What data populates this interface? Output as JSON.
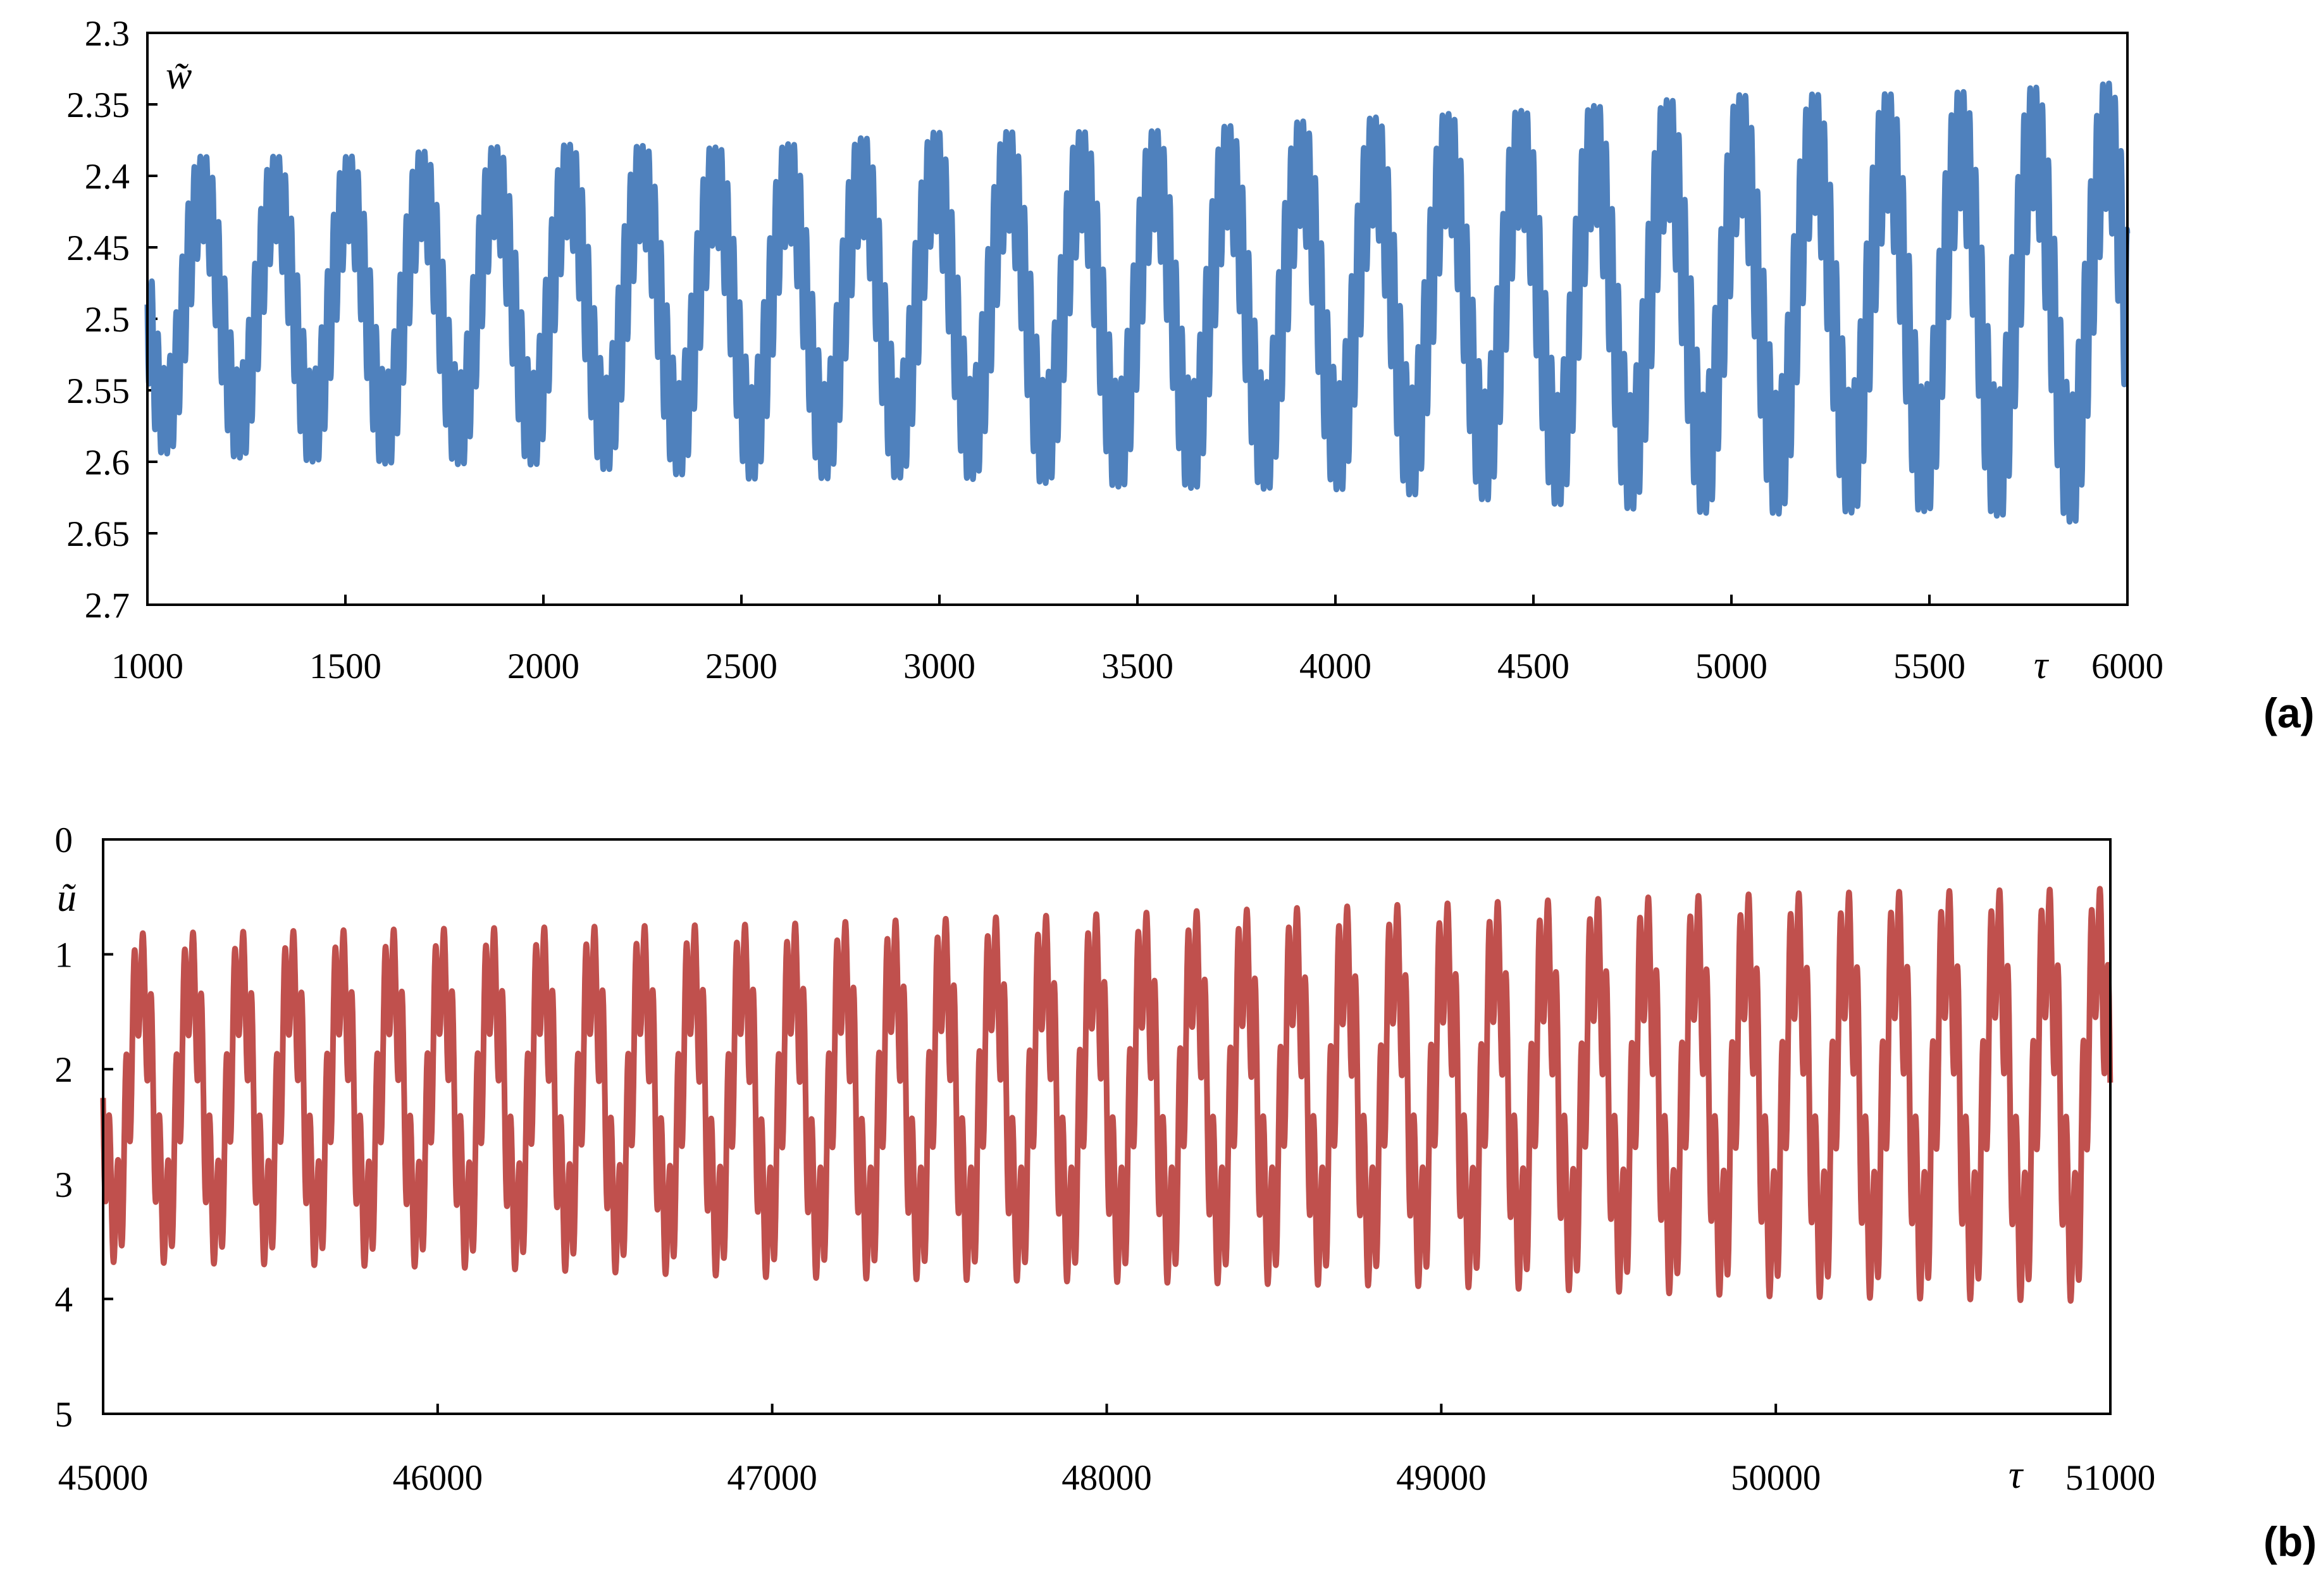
{
  "chart_data": [
    {
      "type": "line",
      "panel_label": "(a)",
      "ylabel": "w̃",
      "xlabel": "τ",
      "xlim": [
        1000,
        6000
      ],
      "ylim": [
        2.3,
        2.7
      ],
      "y_inverted": true,
      "x_ticks": [
        "1000",
        "1500",
        "2000",
        "2500",
        "3000",
        "3500",
        "4000",
        "4500",
        "5000",
        "5500",
        "6000"
      ],
      "y_ticks": [
        "2.3",
        "2.35",
        "2.4",
        "2.45",
        "2.5",
        "2.55",
        "2.6",
        "2.65",
        "2.7"
      ],
      "grid": false,
      "color": "#4f81bd",
      "series": [
        {
          "description_values": "oscillation about 2.49, envelope beat period ~185 τ, fast period ~15 τ; envelope grows from min~2.37/max~2.61 at τ=1000 to min~2.31/max~2.67 at τ=6000",
          "x": [
            1000,
            1500,
            2000,
            2500,
            3000,
            3500,
            4000,
            4500,
            5000,
            5500,
            6000
          ],
          "upper_envelope": [
            2.37,
            2.37,
            2.36,
            2.36,
            2.35,
            2.35,
            2.34,
            2.33,
            2.32,
            2.32,
            2.31
          ],
          "lower_envelope": [
            2.61,
            2.62,
            2.62,
            2.63,
            2.63,
            2.64,
            2.64,
            2.65,
            2.66,
            2.66,
            2.67
          ]
        }
      ]
    },
    {
      "type": "line",
      "panel_label": "(b)",
      "ylabel": "ũ",
      "xlabel": "τ",
      "xlim": [
        45000,
        51000
      ],
      "ylim": [
        0,
        5
      ],
      "y_inverted": true,
      "x_ticks": [
        "45000",
        "46000",
        "47000",
        "48000",
        "49000",
        "50000",
        "51000"
      ],
      "y_ticks": [
        "0",
        "1",
        "2",
        "3",
        "4",
        "5"
      ],
      "grid": false,
      "color": "#c0504d",
      "series": [
        {
          "description_values": "oscillation about 2.3, period ~150 τ; envelope grows from min~0.6/max~3.9 at τ=45000 to min~0.15/max~4.3 at τ=51000",
          "x": [
            45000,
            46000,
            47000,
            48000,
            49000,
            50000,
            51000
          ],
          "upper_envelope": [
            0.6,
            0.55,
            0.5,
            0.4,
            0.3,
            0.2,
            0.15
          ],
          "lower_envelope": [
            3.9,
            3.95,
            4.05,
            4.1,
            4.15,
            4.25,
            4.3
          ]
        }
      ]
    }
  ]
}
